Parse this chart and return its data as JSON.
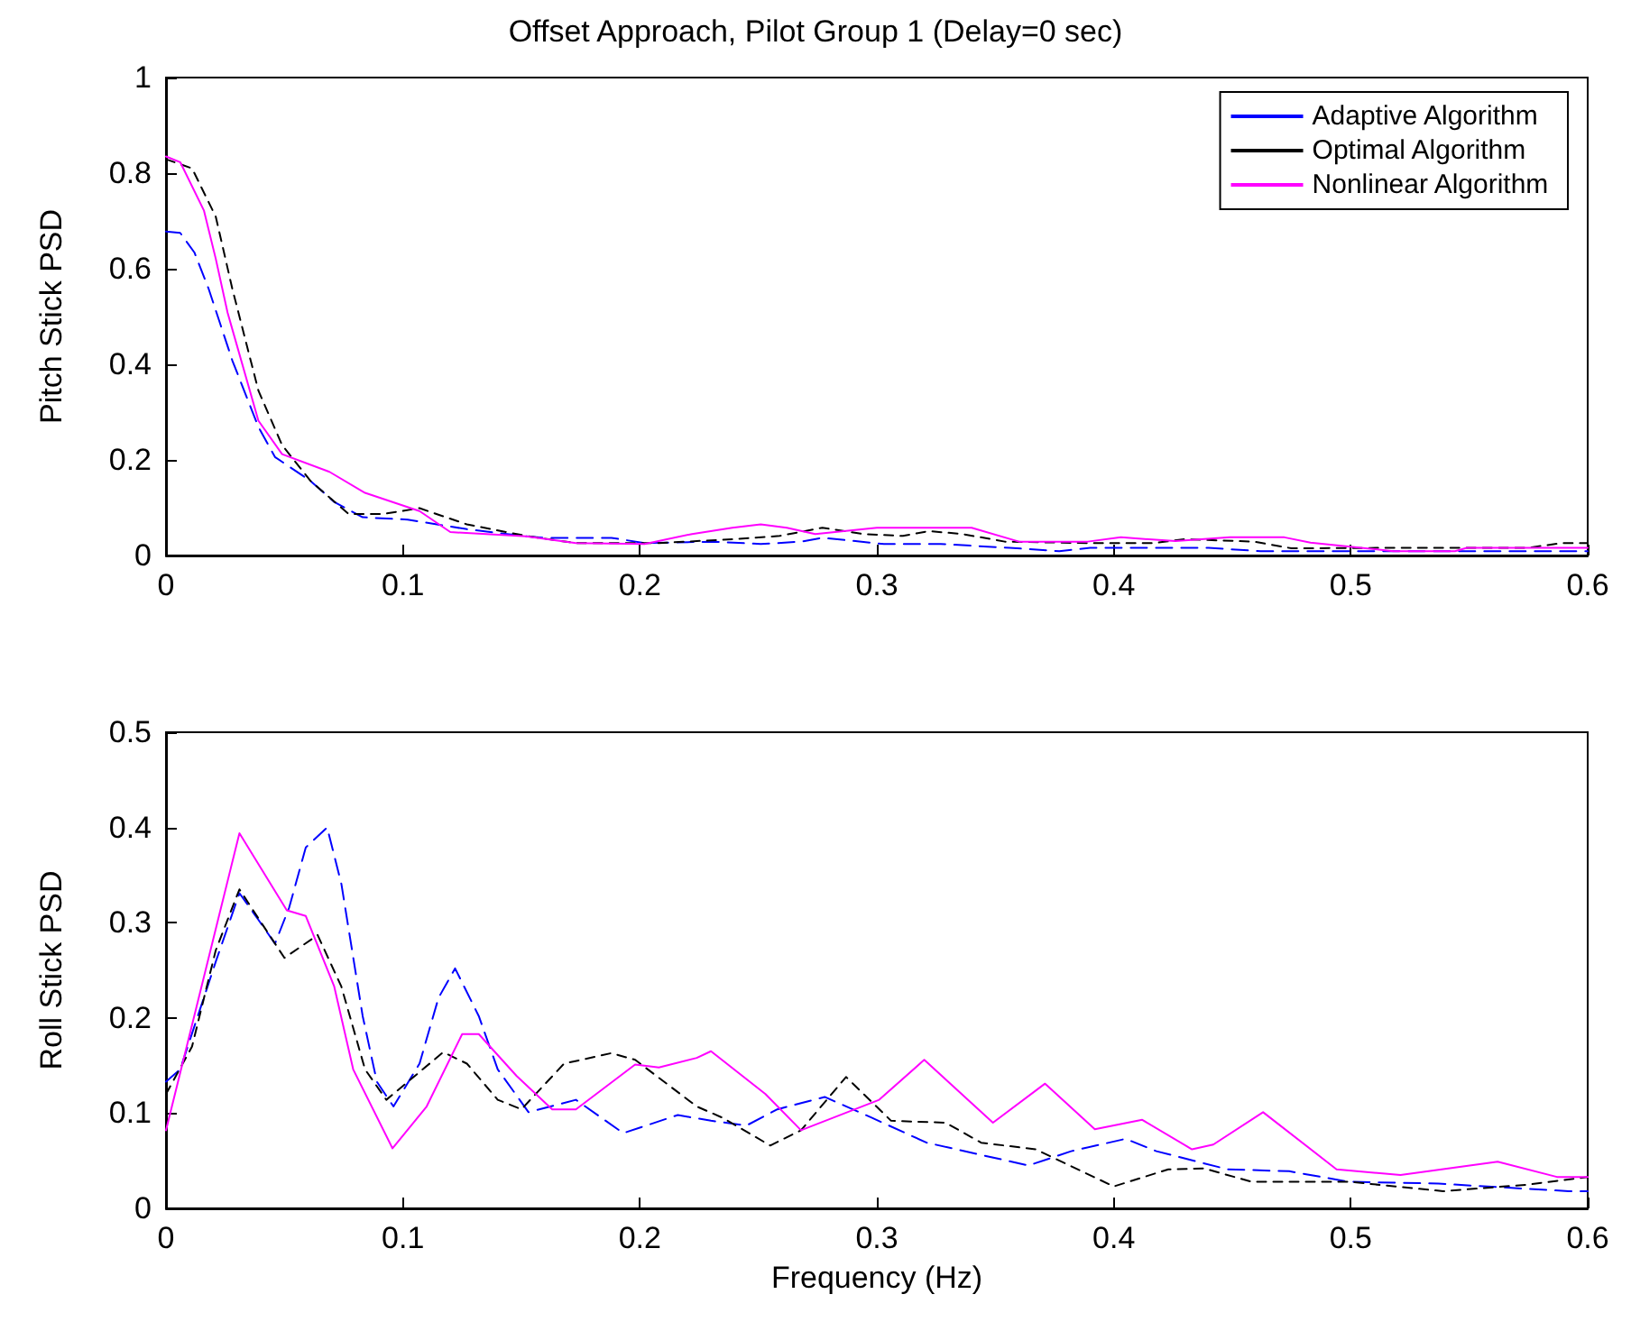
{
  "chart_data": [
    {
      "type": "line",
      "title": "Offset Approach, Pilot Group 1 (Delay=0 sec)",
      "ylabel": "Pitch Stick PSD",
      "xlim": [
        0,
        0.6
      ],
      "xticks": [
        0,
        0.1,
        0.2,
        0.3,
        0.4,
        0.5,
        0.6
      ],
      "ylim": [
        0,
        1
      ],
      "yticks": [
        0,
        0.2,
        0.4,
        0.6,
        0.8,
        1
      ],
      "grid": false,
      "legend": "top right",
      "marker": "none",
      "series": [
        {
          "name": "Adaptive Algorithm",
          "color": "#0000ff",
          "line_style": "dashed",
          "x": [
            0,
            0.006,
            0.012,
            0.018,
            0.023,
            0.028,
            0.039,
            0.046,
            0.061,
            0.071,
            0.083,
            0.102,
            0.127,
            0.152,
            0.159,
            0.188,
            0.202,
            0.231,
            0.251,
            0.268,
            0.277,
            0.303,
            0.327,
            0.356,
            0.377,
            0.39,
            0.417,
            0.44,
            0.462,
            0.497,
            0.556,
            0.6
          ],
          "values": [
            0.678,
            0.675,
            0.634,
            0.558,
            0.483,
            0.408,
            0.269,
            0.206,
            0.156,
            0.112,
            0.08,
            0.075,
            0.055,
            0.04,
            0.037,
            0.037,
            0.026,
            0.029,
            0.024,
            0.029,
            0.037,
            0.024,
            0.024,
            0.016,
            0.009,
            0.016,
            0.016,
            0.016,
            0.009,
            0.009,
            0.009,
            0.009
          ]
        },
        {
          "name": "Optimal Algorithm",
          "color": "#000000",
          "line_style": "dashed",
          "x": [
            0,
            0.011,
            0.021,
            0.028,
            0.039,
            0.049,
            0.061,
            0.077,
            0.092,
            0.107,
            0.127,
            0.153,
            0.173,
            0.208,
            0.239,
            0.259,
            0.277,
            0.294,
            0.311,
            0.322,
            0.336,
            0.354,
            0.389,
            0.417,
            0.43,
            0.459,
            0.475,
            0.518,
            0.575,
            0.589,
            0.6
          ],
          "values": [
            0.829,
            0.81,
            0.709,
            0.558,
            0.345,
            0.231,
            0.156,
            0.087,
            0.087,
            0.099,
            0.065,
            0.04,
            0.026,
            0.026,
            0.034,
            0.041,
            0.058,
            0.045,
            0.041,
            0.051,
            0.045,
            0.029,
            0.026,
            0.026,
            0.034,
            0.029,
            0.015,
            0.016,
            0.016,
            0.026,
            0.026
          ]
        },
        {
          "name": "Nonlinear Algorithm",
          "color": "#ff00ff",
          "line_style": "solid",
          "x": [
            0,
            0.006,
            0.016,
            0.021,
            0.026,
            0.039,
            0.049,
            0.069,
            0.084,
            0.107,
            0.12,
            0.152,
            0.173,
            0.202,
            0.222,
            0.239,
            0.251,
            0.262,
            0.274,
            0.3,
            0.34,
            0.36,
            0.389,
            0.403,
            0.426,
            0.449,
            0.472,
            0.483,
            0.518,
            0.544,
            0.549,
            0.6
          ],
          "values": [
            0.835,
            0.823,
            0.722,
            0.621,
            0.508,
            0.282,
            0.212,
            0.175,
            0.131,
            0.093,
            0.049,
            0.04,
            0.026,
            0.024,
            0.045,
            0.058,
            0.065,
            0.058,
            0.045,
            0.058,
            0.058,
            0.029,
            0.029,
            0.038,
            0.03,
            0.038,
            0.038,
            0.027,
            0.009,
            0.009,
            0.016,
            0.016
          ]
        }
      ]
    },
    {
      "type": "line",
      "xlabel": "Frequency (Hz)",
      "ylabel": "Roll Stick PSD",
      "xlim": [
        0,
        0.6
      ],
      "xticks": [
        0,
        0.1,
        0.2,
        0.3,
        0.4,
        0.5,
        0.6
      ],
      "ylim": [
        0,
        0.5
      ],
      "yticks": [
        0,
        0.1,
        0.2,
        0.3,
        0.4,
        0.5
      ],
      "grid": false,
      "marker": "none",
      "series": [
        {
          "color": "#0000ff",
          "line_style": "dashed",
          "x": [
            0,
            0.006,
            0.021,
            0.031,
            0.039,
            0.046,
            0.052,
            0.059,
            0.068,
            0.074,
            0.083,
            0.089,
            0.096,
            0.107,
            0.115,
            0.122,
            0.132,
            0.14,
            0.153,
            0.173,
            0.193,
            0.216,
            0.23,
            0.245,
            0.258,
            0.278,
            0.298,
            0.321,
            0.364,
            0.382,
            0.405,
            0.418,
            0.448,
            0.474,
            0.499,
            0.537,
            0.592,
            0.6
          ],
          "values": [
            0.133,
            0.146,
            0.259,
            0.331,
            0.303,
            0.278,
            0.316,
            0.379,
            0.4,
            0.341,
            0.202,
            0.133,
            0.107,
            0.152,
            0.221,
            0.252,
            0.202,
            0.146,
            0.101,
            0.114,
            0.079,
            0.098,
            0.092,
            0.087,
            0.104,
            0.117,
            0.095,
            0.069,
            0.045,
            0.06,
            0.073,
            0.06,
            0.041,
            0.039,
            0.028,
            0.026,
            0.018,
            0.018
          ]
        },
        {
          "color": "#000000",
          "line_style": "dashed",
          "x": [
            0,
            0.011,
            0.021,
            0.031,
            0.041,
            0.05,
            0.064,
            0.074,
            0.084,
            0.093,
            0.117,
            0.127,
            0.14,
            0.15,
            0.168,
            0.188,
            0.198,
            0.224,
            0.235,
            0.255,
            0.268,
            0.287,
            0.306,
            0.329,
            0.344,
            0.367,
            0.4,
            0.423,
            0.438,
            0.458,
            0.499,
            0.539,
            0.575,
            0.6
          ],
          "values": [
            0.12,
            0.17,
            0.271,
            0.335,
            0.297,
            0.263,
            0.287,
            0.233,
            0.146,
            0.114,
            0.164,
            0.152,
            0.114,
            0.104,
            0.152,
            0.163,
            0.156,
            0.107,
            0.095,
            0.066,
            0.082,
            0.138,
            0.092,
            0.09,
            0.069,
            0.062,
            0.023,
            0.041,
            0.042,
            0.028,
            0.028,
            0.018,
            0.025,
            0.033
          ]
        },
        {
          "color": "#ff00ff",
          "line_style": "solid",
          "x": [
            0,
            0.031,
            0.051,
            0.059,
            0.071,
            0.079,
            0.0956,
            0.11,
            0.125,
            0.132,
            0.148,
            0.163,
            0.173,
            0.198,
            0.208,
            0.224,
            0.23,
            0.253,
            0.268,
            0.301,
            0.32,
            0.349,
            0.371,
            0.392,
            0.412,
            0.433,
            0.442,
            0.463,
            0.494,
            0.521,
            0.562,
            0.587,
            0.6
          ],
          "values": [
            0.082,
            0.394,
            0.313,
            0.307,
            0.233,
            0.146,
            0.063,
            0.107,
            0.183,
            0.183,
            0.139,
            0.104,
            0.104,
            0.151,
            0.148,
            0.158,
            0.165,
            0.12,
            0.082,
            0.114,
            0.156,
            0.09,
            0.131,
            0.083,
            0.093,
            0.062,
            0.067,
            0.101,
            0.041,
            0.035,
            0.049,
            0.033,
            0.033
          ]
        }
      ]
    }
  ]
}
